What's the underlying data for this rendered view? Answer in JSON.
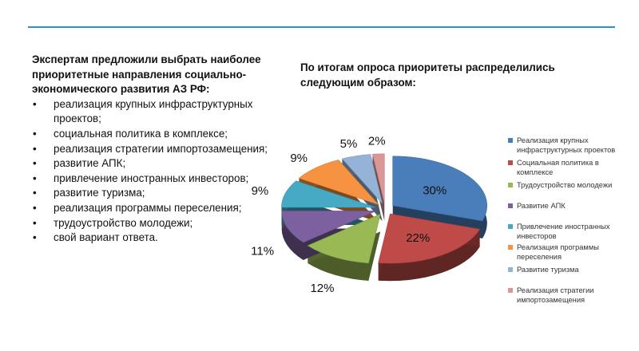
{
  "left": {
    "intro": "Экспертам предложили выбрать наиболее приоритетные направления социально-экономического развития АЗ РФ:",
    "bullets": [
      "реализация крупных инфраструктурных проектов;",
      "социальная политика в комплексе;",
      "реализация стратегии импортозамещения;",
      "развитие АПК;",
      "привлечение иностранных инвесторов;",
      "развитие туризма;",
      "реализация программы переселения;",
      "трудоустройство молодежи;",
      "свой вариант ответа."
    ]
  },
  "chart_data": {
    "type": "pie",
    "title": "По итогам опроса приоритеты распределились следующим образом:",
    "legend_position": "right",
    "categories": [
      "Реализация крупных инфраструктурных проектов",
      "Социальная политика в комплексе",
      "Трудоустройство молодежи",
      "Развитие АПК",
      "Привлечение иностранных инвесторов",
      "Реализация программы переселения",
      "Развитие туризма",
      "Реализация стратегии импортозамещения"
    ],
    "values": [
      30,
      22,
      12,
      11,
      9,
      9,
      5,
      2
    ],
    "labels": [
      "30%",
      "22%",
      "12%",
      "11%",
      "9%",
      "9%",
      "5%",
      "2%"
    ],
    "colors": [
      "#4a7ebb",
      "#be4b48",
      "#98b954",
      "#7d60a0",
      "#46aac5",
      "#f69240",
      "#95b3d7",
      "#d99795"
    ]
  }
}
